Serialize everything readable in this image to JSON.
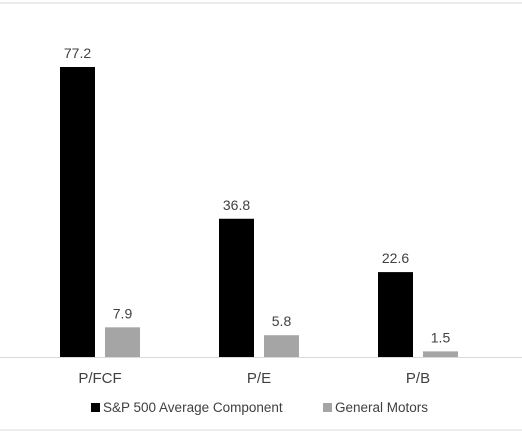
{
  "chart_data": {
    "type": "bar",
    "title": "",
    "xlabel": "",
    "ylabel": "",
    "categories": [
      "P/FCF",
      "P/E",
      "P/B"
    ],
    "series": [
      {
        "name": "S&P 500 Average Component",
        "values": [
          77.2,
          36.8,
          22.6
        ],
        "color": "#000000"
      },
      {
        "name": "General Motors",
        "values": [
          7.9,
          5.8,
          1.5
        ],
        "color": "#a5a5a5"
      }
    ],
    "ylim": [
      0,
      85
    ],
    "grid": false,
    "legend_position": "bottom",
    "data_labels": [
      "77.2",
      "36.8",
      "22.6",
      "7.9",
      "5.8",
      "1.5"
    ]
  }
}
